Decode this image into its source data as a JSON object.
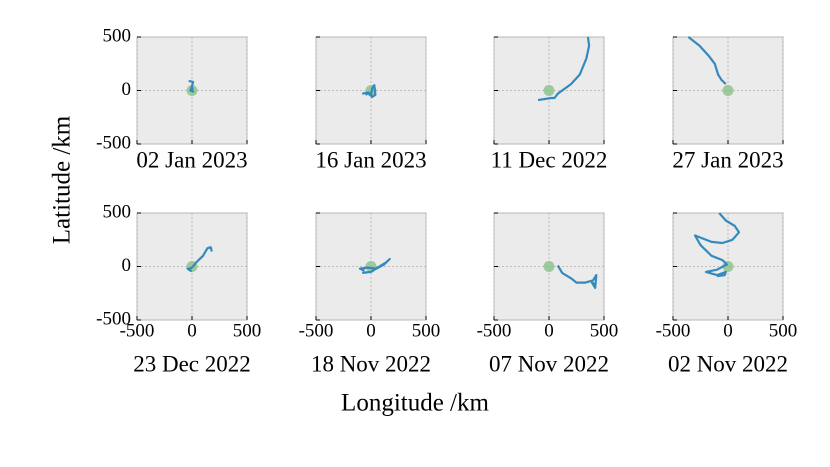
{
  "chart_data": {
    "type": "line",
    "xlabel": "Longitude /km",
    "ylabel": "Latitude /km",
    "xlim": [
      -500,
      500
    ],
    "ylim": [
      -500,
      500
    ],
    "xticks": [
      -500,
      0,
      500
    ],
    "yticks": [
      -500,
      0,
      500
    ],
    "grid": true,
    "color": "#348abd",
    "reference_point": {
      "x": 0,
      "y": 0,
      "color": "#8fc48f"
    },
    "panels": [
      {
        "title": "02 Jan 2023",
        "x": [
          -30,
          10,
          0,
          -10,
          10,
          -15,
          5,
          0
        ],
        "y": [
          90,
          80,
          40,
          10,
          -10,
          0,
          20,
          -5
        ]
      },
      {
        "title": "16 Jan 2023",
        "x": [
          -80,
          -30,
          0,
          10,
          30,
          40,
          10,
          -20,
          -50
        ],
        "y": [
          -30,
          -20,
          -50,
          20,
          50,
          -40,
          -60,
          -20,
          -40
        ]
      },
      {
        "title": "11 Dec 2022",
        "x": [
          -100,
          20,
          50,
          80,
          200,
          280,
          340,
          365,
          355
        ],
        "y": [
          -90,
          -70,
          -70,
          -30,
          60,
          150,
          300,
          420,
          500
        ]
      },
      {
        "title": "27 Jan 2023",
        "x": [
          -360,
          -260,
          -180,
          -120,
          -90,
          -60,
          -20
        ],
        "y": [
          500,
          420,
          330,
          250,
          150,
          100,
          60
        ]
      },
      {
        "title": "23 Dec 2022",
        "x": [
          -30,
          -10,
          -40,
          -20,
          0,
          40,
          100,
          140,
          170,
          180
        ],
        "y": [
          -30,
          -40,
          -20,
          -20,
          -10,
          40,
          100,
          170,
          180,
          140
        ]
      },
      {
        "title": "18 Nov 2022",
        "x": [
          -60,
          -100,
          -30,
          50,
          120,
          170,
          140,
          60,
          0,
          -80
        ],
        "y": [
          -40,
          -20,
          -10,
          -20,
          20,
          70,
          40,
          -10,
          -50,
          -60
        ]
      },
      {
        "title": "07 Nov 2022",
        "x": [
          80,
          120,
          200,
          250,
          330,
          400,
          430,
          420,
          390,
          430
        ],
        "y": [
          10,
          -60,
          -110,
          -150,
          -150,
          -130,
          -80,
          -200,
          -150,
          -170
        ]
      },
      {
        "title": "02 Nov 2022",
        "x": [
          -80,
          -20,
          60,
          100,
          40,
          -50,
          -150,
          -300,
          -250,
          -150,
          -50,
          -10,
          -100,
          -200,
          -100,
          -20,
          -30,
          -100
        ],
        "y": [
          500,
          430,
          380,
          320,
          250,
          220,
          230,
          290,
          200,
          100,
          60,
          20,
          -30,
          -50,
          -80,
          -50,
          -80,
          -90
        ]
      }
    ]
  }
}
